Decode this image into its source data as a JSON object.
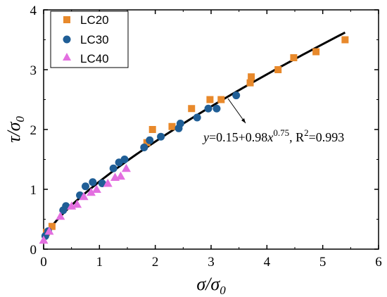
{
  "chart_data": {
    "type": "scatter",
    "xlabel": "σ/σ0",
    "ylabel": "τ/σ0",
    "xlim": [
      0,
      6
    ],
    "ylim": [
      0,
      4
    ],
    "x_ticks": [
      "0",
      "1",
      "2",
      "3",
      "4",
      "5",
      "6"
    ],
    "y_ticks": [
      "0",
      "1",
      "2",
      "3",
      "4"
    ],
    "legend_position": "top-left",
    "series": [
      {
        "name": "LC20",
        "marker": "square",
        "color": "#E8892B",
        "points": [
          [
            0.05,
            0.28
          ],
          [
            0.15,
            0.38
          ],
          [
            1.85,
            1.78
          ],
          [
            1.95,
            2.0
          ],
          [
            2.3,
            2.05
          ],
          [
            2.65,
            2.35
          ],
          [
            2.98,
            2.5
          ],
          [
            3.18,
            2.5
          ],
          [
            3.7,
            2.78
          ],
          [
            3.72,
            2.88
          ],
          [
            4.2,
            3.0
          ],
          [
            4.48,
            3.2
          ],
          [
            4.88,
            3.3
          ],
          [
            5.4,
            3.5
          ]
        ]
      },
      {
        "name": "LC30",
        "marker": "circle",
        "color": "#1F5E96",
        "points": [
          [
            0.03,
            0.22
          ],
          [
            0.08,
            0.3
          ],
          [
            0.35,
            0.65
          ],
          [
            0.4,
            0.72
          ],
          [
            0.65,
            0.9
          ],
          [
            0.75,
            1.05
          ],
          [
            0.88,
            1.12
          ],
          [
            1.05,
            1.1
          ],
          [
            1.25,
            1.35
          ],
          [
            1.35,
            1.45
          ],
          [
            1.45,
            1.5
          ],
          [
            1.8,
            1.7
          ],
          [
            1.9,
            1.82
          ],
          [
            2.1,
            1.88
          ],
          [
            2.42,
            2.02
          ],
          [
            2.45,
            2.1
          ],
          [
            2.75,
            2.2
          ],
          [
            2.95,
            2.35
          ],
          [
            3.1,
            2.35
          ],
          [
            3.45,
            2.57
          ]
        ]
      },
      {
        "name": "LC40",
        "marker": "triangle",
        "color": "#E36FE0",
        "points": [
          [
            0.0,
            0.15
          ],
          [
            0.1,
            0.3
          ],
          [
            0.3,
            0.55
          ],
          [
            0.5,
            0.72
          ],
          [
            0.6,
            0.75
          ],
          [
            0.72,
            0.88
          ],
          [
            0.85,
            0.95
          ],
          [
            0.95,
            1.0
          ],
          [
            1.15,
            1.1
          ],
          [
            1.28,
            1.2
          ],
          [
            1.38,
            1.22
          ],
          [
            1.48,
            1.35
          ]
        ]
      }
    ],
    "fit": {
      "equation_parts": {
        "y": "y",
        "mid": "=0.15+0.98",
        "x": "x",
        "exp": "0.75",
        "r": ", R",
        "r_exp": "2",
        "r_val": "=0.993"
      },
      "a": 0.15,
      "b": 0.98,
      "c": 0.75,
      "x_range": [
        0.0,
        5.4
      ],
      "color": "#000000"
    }
  }
}
